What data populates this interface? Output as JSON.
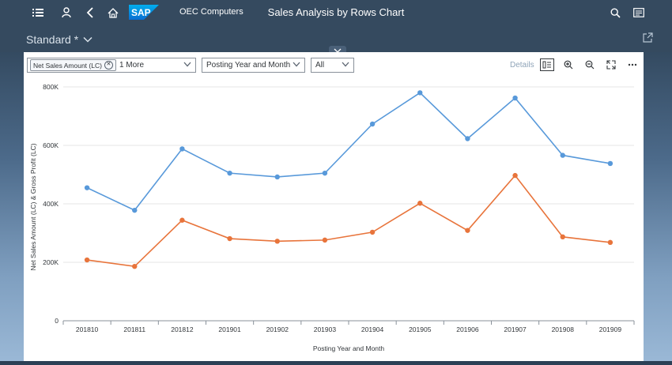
{
  "shell": {
    "company": "OEC Computers",
    "title": "Sales Analysis by Rows Chart",
    "logo_text": "SAP"
  },
  "header": {
    "variant": "Standard *"
  },
  "toolbar": {
    "measure_token": "Net Sales Amount (LC)",
    "measure_more": "1 More",
    "dimension": "Posting Year and Month",
    "filter_value": "All",
    "details_label": "Details"
  },
  "colors": {
    "series1": "#5899da",
    "series2": "#e8743b",
    "shell": "#354a5f"
  },
  "chart_data": {
    "type": "line",
    "xlabel": "Posting Year and Month",
    "ylabel": "Net Sales Amount (LC) & Gross Profit (LC)",
    "categories": [
      "201810",
      "201811",
      "201812",
      "201901",
      "201902",
      "201903",
      "201904",
      "201905",
      "201906",
      "201907",
      "201908",
      "201909"
    ],
    "ylim": [
      0,
      800000
    ],
    "yticks": [
      {
        "value": 0,
        "label": "0"
      },
      {
        "value": 200000,
        "label": "200K"
      },
      {
        "value": 400000,
        "label": "400K"
      },
      {
        "value": 600000,
        "label": "600K"
      },
      {
        "value": 800000,
        "label": "800K"
      }
    ],
    "grid": true,
    "series": [
      {
        "values": [
          455000,
          378000,
          588000,
          505000,
          492000,
          505000,
          673000,
          780000,
          623000,
          762000,
          566000,
          538000
        ]
      },
      {
        "values": [
          208000,
          186000,
          344000,
          281000,
          272000,
          276000,
          303000,
          402000,
          309000,
          497000,
          287000,
          268000
        ]
      }
    ]
  }
}
